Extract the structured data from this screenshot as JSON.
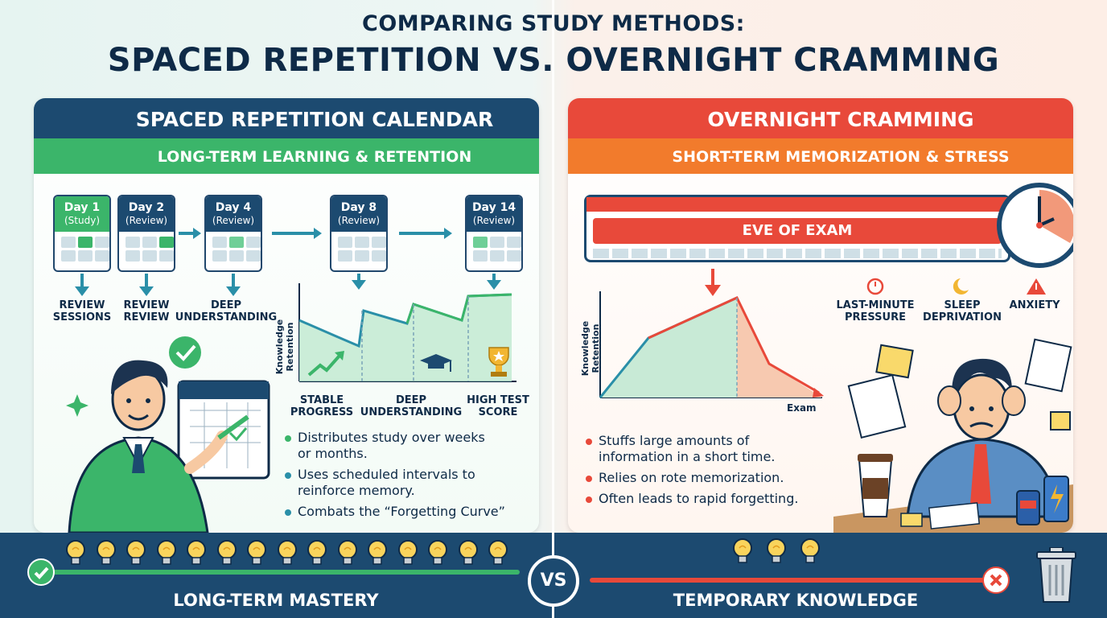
{
  "title": {
    "line1": "COMPARING STUDY METHODS:",
    "line2": "SPACED REPETITION VS. OVERNIGHT CRAMMING"
  },
  "left": {
    "heading": "SPACED REPETITION CALENDAR",
    "subheading": "LONG-TERM LEARNING & RETENTION",
    "days": [
      {
        "day": "Day 1",
        "kind": "(Study)"
      },
      {
        "day": "Day 2",
        "kind": "(Review)"
      },
      {
        "day": "Day 4",
        "kind": "(Review)"
      },
      {
        "day": "Day 8",
        "kind": "(Review)"
      },
      {
        "day": "Day 14",
        "kind": "(Review)"
      }
    ],
    "step_labels": [
      {
        "l1": "REVIEW",
        "l2": "SESSIONS"
      },
      {
        "l1": "REVIEW",
        "l2": "REVIEW"
      },
      {
        "l1": "DEEP",
        "l2": "UNDERSTANDING"
      }
    ],
    "chart_ylabel": "Knowledge Retention",
    "chart_labels": [
      {
        "l1": "STABLE",
        "l2": "PROGRESS"
      },
      {
        "l1": "DEEP",
        "l2": "UNDERSTANDING"
      },
      {
        "l1": "HIGH TEST",
        "l2": "SCORE"
      }
    ],
    "bullets": [
      {
        "l1": "Distributes study over weeks",
        "l2": "or months."
      },
      {
        "l1": "Uses scheduled intervals to",
        "l2": "reinforce memory."
      },
      {
        "l1": "Combats the “Forgetting Curve”",
        "l2": ""
      }
    ],
    "footer": "LONG-TERM MASTERY",
    "bulb_count": 15
  },
  "right": {
    "heading": "OVERNIGHT CRAMMING",
    "subheading": "SHORT-TERM MEMORIZATION & STRESS",
    "eve_label": "EVE OF EXAM",
    "stress": [
      {
        "l1": "LAST-MINUTE",
        "l2": "PRESSURE"
      },
      {
        "l1": "SLEEP",
        "l2": "DEPRIVATION"
      },
      {
        "l1": "ANXIETY",
        "l2": ""
      }
    ],
    "chart_ylabel": "Knowledge Retention",
    "chart_xlabel": "Exam",
    "bullets": [
      {
        "l1": "Stuffs large amounts of",
        "l2": "information in a short time."
      },
      {
        "l1": "Relies on rote memorization.",
        "l2": ""
      },
      {
        "l1": "Often leads to rapid forgetting.",
        "l2": ""
      }
    ],
    "footer": "TEMPORARY KNOWLEDGE",
    "bulb_count": 3
  },
  "vs_label": "VS",
  "colors": {
    "navy": "#1c4a70",
    "green": "#3bb56a",
    "red": "#e8493a",
    "orange": "#f27b2c",
    "teal": "#2a8fa8"
  },
  "icons": [
    "calendar-icon",
    "clock-icon",
    "lightbulb-icon",
    "trash-icon",
    "check-icon",
    "cross-icon",
    "trophy-icon",
    "graduation-cap-icon",
    "warning-icon",
    "moon-icon",
    "stopwatch-icon"
  ]
}
